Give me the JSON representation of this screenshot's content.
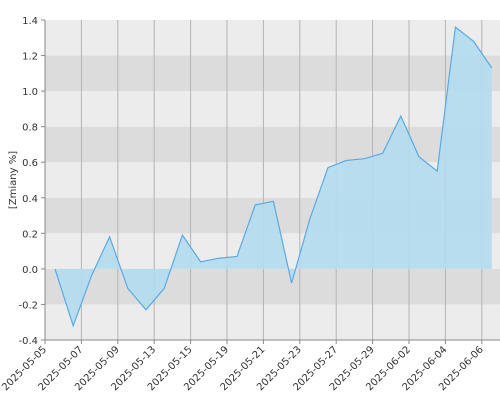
{
  "chart_data": {
    "type": "area",
    "y_label": "[Zmiany %]",
    "values": [
      0,
      -0.32,
      -0.04,
      0.18,
      -0.11,
      -0.23,
      -0.11,
      0.19,
      0.04,
      0.06,
      0.07,
      0.36,
      0.38,
      -0.08,
      0.28,
      0.57,
      0.61,
      0.62,
      0.65,
      0.86,
      0.63,
      0.55,
      1.36,
      1.28,
      1.13
    ],
    "x_labels": [
      "2025-05-05",
      "2025-05-07",
      "2025-05-09",
      "2025-05-13",
      "2025-05-15",
      "2025-05-19",
      "2025-05-21",
      "2025-05-23",
      "2025-05-27",
      "2025-05-29",
      "2025-06-02",
      "2025-06-04",
      "2025-06-06"
    ],
    "ylim": [
      -0.4,
      1.4
    ],
    "yticks": [
      -0.4,
      -0.2,
      {
        "value": 0,
        "label": "0.0"
      },
      0.2,
      0.4,
      0.6,
      0.8,
      {
        "value": 1,
        "label": "1.0"
      },
      1.2,
      1.4
    ],
    "line_color": "#5aaae6",
    "fill_color": "#b3dcf0",
    "band_colors": [
      "#ececec",
      "#dcdcdc"
    ],
    "grid": true
  }
}
